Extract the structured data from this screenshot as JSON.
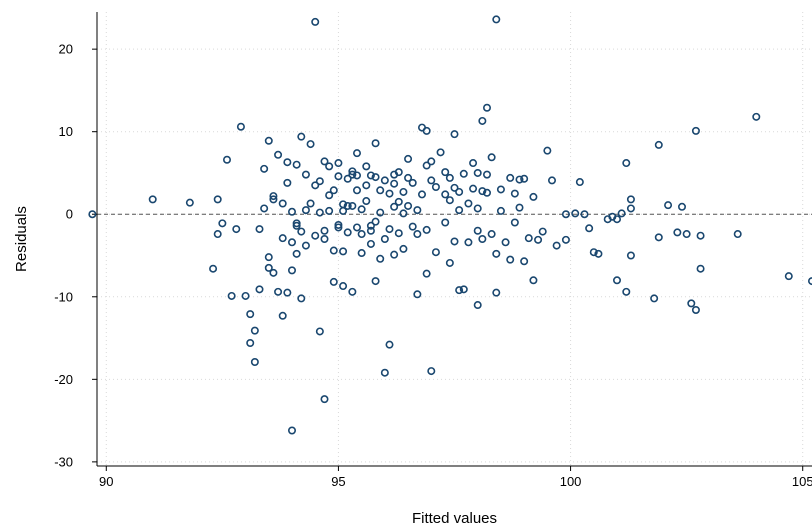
{
  "chart_data": {
    "type": "scatter",
    "title": "",
    "xlabel": "Fitted values",
    "ylabel": "Residuals",
    "xlim": [
      89.8,
      105.2
    ],
    "ylim": [
      -30.5,
      24.5
    ],
    "x_ticks": [
      90,
      95,
      100,
      105
    ],
    "y_ticks": [
      -30,
      -20,
      -10,
      0,
      10,
      20
    ],
    "x_tick_labels": [
      "90",
      "95",
      "100",
      "105"
    ],
    "y_tick_labels": [
      "-30",
      "-20",
      "-10",
      "0",
      "10",
      "20"
    ],
    "grid": true,
    "reference_line_y": 0,
    "marker": "hollow-circle",
    "colors": {
      "marker": "#1a476f",
      "grid": "#d9d9d9",
      "reference_line": "#555555",
      "axis": "#000000"
    },
    "points": [
      [
        89.7,
        0.0
      ],
      [
        91.0,
        1.8
      ],
      [
        91.8,
        1.4
      ],
      [
        92.3,
        -6.6
      ],
      [
        92.4,
        1.8
      ],
      [
        92.4,
        -2.4
      ],
      [
        92.5,
        -1.1
      ],
      [
        92.6,
        6.6
      ],
      [
        92.7,
        -9.9
      ],
      [
        92.8,
        -1.8
      ],
      [
        92.9,
        10.6
      ],
      [
        93.0,
        -9.9
      ],
      [
        93.1,
        -15.6
      ],
      [
        93.1,
        -12.1
      ],
      [
        93.2,
        -14.1
      ],
      [
        93.2,
        -17.9
      ],
      [
        93.3,
        -9.1
      ],
      [
        93.3,
        -1.8
      ],
      [
        93.4,
        5.5
      ],
      [
        93.4,
        0.7
      ],
      [
        93.5,
        8.9
      ],
      [
        93.5,
        -5.2
      ],
      [
        93.5,
        -6.5
      ],
      [
        93.6,
        1.8
      ],
      [
        93.6,
        2.2
      ],
      [
        93.6,
        -7.1
      ],
      [
        93.7,
        7.2
      ],
      [
        93.7,
        -9.4
      ],
      [
        93.8,
        -12.3
      ],
      [
        93.8,
        -2.9
      ],
      [
        93.8,
        1.3
      ],
      [
        93.9,
        6.3
      ],
      [
        93.9,
        3.8
      ],
      [
        93.9,
        -9.5
      ],
      [
        94.0,
        -6.8
      ],
      [
        94.0,
        -3.4
      ],
      [
        94.0,
        0.3
      ],
      [
        94.0,
        -26.2
      ],
      [
        94.1,
        6.0
      ],
      [
        94.1,
        -1.1
      ],
      [
        94.1,
        -1.4
      ],
      [
        94.1,
        -4.8
      ],
      [
        94.2,
        9.4
      ],
      [
        94.2,
        -2.1
      ],
      [
        94.2,
        -10.2
      ],
      [
        94.3,
        4.8
      ],
      [
        94.3,
        -3.8
      ],
      [
        94.3,
        0.5
      ],
      [
        94.4,
        8.5
      ],
      [
        94.4,
        1.3
      ],
      [
        94.5,
        -2.6
      ],
      [
        94.5,
        3.5
      ],
      [
        94.5,
        23.3
      ],
      [
        94.6,
        -14.2
      ],
      [
        94.6,
        0.2
      ],
      [
        94.6,
        4.0
      ],
      [
        94.7,
        -22.4
      ],
      [
        94.7,
        6.4
      ],
      [
        94.7,
        -2.0
      ],
      [
        94.7,
        -3.0
      ],
      [
        94.8,
        5.8
      ],
      [
        94.8,
        2.3
      ],
      [
        94.8,
        0.4
      ],
      [
        94.9,
        -4.4
      ],
      [
        94.9,
        -8.2
      ],
      [
        94.9,
        2.9
      ],
      [
        95.0,
        6.2
      ],
      [
        95.0,
        -1.3
      ],
      [
        95.0,
        -1.6
      ],
      [
        95.0,
        4.6
      ],
      [
        95.1,
        -4.5
      ],
      [
        95.1,
        0.4
      ],
      [
        95.1,
        -8.7
      ],
      [
        95.1,
        1.2
      ],
      [
        95.2,
        1.0
      ],
      [
        95.2,
        4.3
      ],
      [
        95.2,
        -2.2
      ],
      [
        95.3,
        5.2
      ],
      [
        95.3,
        4.8
      ],
      [
        95.3,
        1.0
      ],
      [
        95.3,
        -9.4
      ],
      [
        95.4,
        4.7
      ],
      [
        95.4,
        7.4
      ],
      [
        95.4,
        -1.6
      ],
      [
        95.4,
        2.9
      ],
      [
        95.5,
        0.6
      ],
      [
        95.5,
        -4.7
      ],
      [
        95.5,
        -2.4
      ],
      [
        95.6,
        5.8
      ],
      [
        95.6,
        3.5
      ],
      [
        95.6,
        1.6
      ],
      [
        95.7,
        4.7
      ],
      [
        95.7,
        -2.0
      ],
      [
        95.7,
        -3.6
      ],
      [
        95.7,
        -1.4
      ],
      [
        95.8,
        8.6
      ],
      [
        95.8,
        4.5
      ],
      [
        95.8,
        -0.9
      ],
      [
        95.8,
        -8.1
      ],
      [
        95.9,
        2.9
      ],
      [
        95.9,
        0.2
      ],
      [
        95.9,
        -5.4
      ],
      [
        96.0,
        -19.2
      ],
      [
        96.0,
        -3.0
      ],
      [
        96.0,
        4.1
      ],
      [
        96.1,
        2.5
      ],
      [
        96.1,
        -1.8
      ],
      [
        96.1,
        -15.8
      ],
      [
        96.2,
        4.8
      ],
      [
        96.2,
        3.7
      ],
      [
        96.2,
        0.9
      ],
      [
        96.2,
        -4.9
      ],
      [
        96.3,
        5.1
      ],
      [
        96.3,
        1.5
      ],
      [
        96.3,
        -2.3
      ],
      [
        96.4,
        2.7
      ],
      [
        96.4,
        0.1
      ],
      [
        96.4,
        -4.2
      ],
      [
        96.5,
        6.7
      ],
      [
        96.5,
        4.4
      ],
      [
        96.5,
        1.0
      ],
      [
        96.6,
        3.8
      ],
      [
        96.6,
        -1.5
      ],
      [
        96.7,
        -2.4
      ],
      [
        96.7,
        0.5
      ],
      [
        96.7,
        -9.7
      ],
      [
        96.8,
        10.5
      ],
      [
        96.8,
        2.4
      ],
      [
        96.9,
        10.1
      ],
      [
        96.9,
        5.9
      ],
      [
        96.9,
        -1.9
      ],
      [
        96.9,
        -7.2
      ],
      [
        97.0,
        6.4
      ],
      [
        97.0,
        4.1
      ],
      [
        97.0,
        -19.0
      ],
      [
        97.1,
        3.3
      ],
      [
        97.1,
        -4.6
      ],
      [
        97.2,
        7.5
      ],
      [
        97.3,
        5.1
      ],
      [
        97.3,
        2.4
      ],
      [
        97.3,
        -1.0
      ],
      [
        97.4,
        4.4
      ],
      [
        97.4,
        1.7
      ],
      [
        97.4,
        -5.9
      ],
      [
        97.5,
        9.7
      ],
      [
        97.5,
        3.2
      ],
      [
        97.5,
        -3.3
      ],
      [
        97.6,
        2.7
      ],
      [
        97.6,
        -9.2
      ],
      [
        97.6,
        0.5
      ],
      [
        97.7,
        4.9
      ],
      [
        97.7,
        -9.1
      ],
      [
        97.8,
        1.3
      ],
      [
        97.8,
        -3.4
      ],
      [
        97.9,
        6.2
      ],
      [
        97.9,
        3.1
      ],
      [
        98.0,
        5.0
      ],
      [
        98.0,
        0.7
      ],
      [
        98.0,
        -2.0
      ],
      [
        98.0,
        -11.0
      ],
      [
        98.1,
        2.8
      ],
      [
        98.1,
        11.3
      ],
      [
        98.1,
        -3.0
      ],
      [
        98.2,
        12.9
      ],
      [
        98.2,
        2.6
      ],
      [
        98.2,
        4.8
      ],
      [
        98.3,
        6.9
      ],
      [
        98.3,
        -2.4
      ],
      [
        98.4,
        23.6
      ],
      [
        98.4,
        -4.8
      ],
      [
        98.4,
        -9.5
      ],
      [
        98.5,
        3.0
      ],
      [
        98.5,
        0.4
      ],
      [
        98.6,
        -3.4
      ],
      [
        98.7,
        -5.5
      ],
      [
        98.7,
        4.4
      ],
      [
        98.8,
        2.5
      ],
      [
        98.8,
        -1.0
      ],
      [
        98.9,
        4.2
      ],
      [
        98.9,
        0.8
      ],
      [
        99.0,
        4.3
      ],
      [
        99.0,
        -5.7
      ],
      [
        99.1,
        -2.9
      ],
      [
        99.2,
        2.1
      ],
      [
        99.2,
        -8.0
      ],
      [
        99.3,
        -3.1
      ],
      [
        99.4,
        -2.1
      ],
      [
        99.5,
        7.7
      ],
      [
        99.6,
        4.1
      ],
      [
        99.7,
        -3.8
      ],
      [
        99.9,
        0.0
      ],
      [
        99.9,
        -3.1
      ],
      [
        100.1,
        0.1
      ],
      [
        100.2,
        3.9
      ],
      [
        100.3,
        0.0
      ],
      [
        100.4,
        -1.7
      ],
      [
        100.5,
        -4.6
      ],
      [
        100.6,
        -4.8
      ],
      [
        100.8,
        -0.6
      ],
      [
        100.9,
        -0.3
      ],
      [
        101.0,
        -0.6
      ],
      [
        101.0,
        -8.0
      ],
      [
        101.1,
        0.1
      ],
      [
        101.2,
        -9.4
      ],
      [
        101.2,
        6.2
      ],
      [
        101.3,
        1.8
      ],
      [
        101.3,
        0.7
      ],
      [
        101.3,
        -5.0
      ],
      [
        101.8,
        -10.2
      ],
      [
        101.9,
        8.4
      ],
      [
        101.9,
        -2.8
      ],
      [
        102.1,
        1.1
      ],
      [
        102.3,
        -2.2
      ],
      [
        102.4,
        0.9
      ],
      [
        102.5,
        -2.4
      ],
      [
        102.6,
        -10.8
      ],
      [
        102.7,
        10.1
      ],
      [
        102.7,
        -11.6
      ],
      [
        102.8,
        -6.6
      ],
      [
        102.8,
        -2.6
      ],
      [
        103.6,
        -2.4
      ],
      [
        104.0,
        11.8
      ],
      [
        104.7,
        -7.5
      ],
      [
        105.2,
        -8.1
      ]
    ]
  }
}
